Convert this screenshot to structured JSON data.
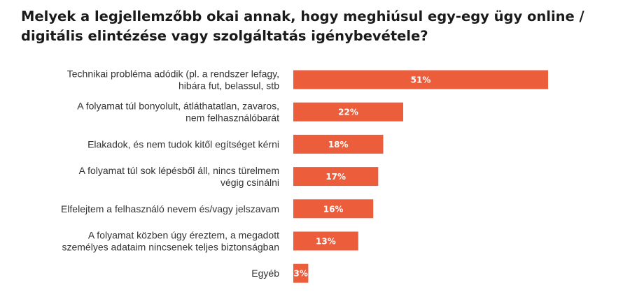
{
  "title": "Melyek a legjellemzőbb okai annak, hogy meghiúsul egy-egy ügy online / digitális  elintézése vagy szolgáltatás igénybevétele?",
  "colors": {
    "bar": "#ec5d3c",
    "value_text": "#ffffff",
    "label_text": "#333333"
  },
  "chart_data": {
    "type": "bar",
    "orientation": "horizontal",
    "title": "Melyek a legjellemzőbb okai annak, hogy meghiúsul egy-egy ügy online / digitális  elintézése vagy szolgáltatás igénybevétele?",
    "categories": [
      [
        "Technikai probléma adódik (pl. a rendszer lefagy,",
        "hibára fut, belassul, stb"
      ],
      [
        "A folyamat túl bonyolult, átláthatatlan, zavaros,",
        "nem felhasználóbarát"
      ],
      [
        "Elakadok, és nem tudok kitől egítséget kérni"
      ],
      [
        "A folyamat túl sok lépésből áll, nincs türelmem",
        "végig csinálni"
      ],
      [
        "Elfelejtem a felhasználó nevem és/vagy jelszavam"
      ],
      [
        "A folyamat közben úgy éreztem, a megadott",
        "személyes adataim nincsenek teljes biztonságban"
      ],
      [
        "Egyéb"
      ]
    ],
    "values": [
      51,
      22,
      18,
      17,
      16,
      13,
      3
    ],
    "value_labels": [
      "51%",
      "22%",
      "18%",
      "17%",
      "16%",
      "13%",
      "3%"
    ],
    "xlim": [
      0,
      100
    ],
    "xlabel": "",
    "ylabel": "",
    "grid": false,
    "legend": "none"
  }
}
